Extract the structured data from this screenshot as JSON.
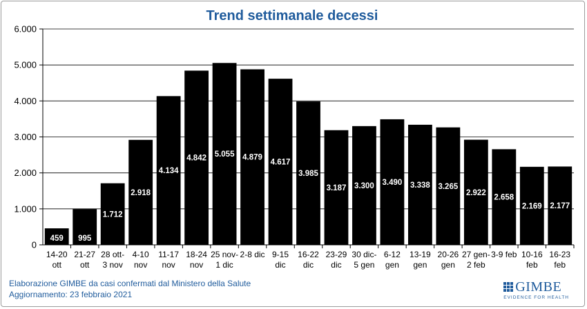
{
  "chart_data": {
    "type": "bar",
    "title": "Trend settimanale decessi",
    "xlabel": "",
    "ylabel": "",
    "ylim": [
      0,
      6000
    ],
    "yticks": [
      "0",
      "1.000",
      "2.000",
      "3.000",
      "4.000",
      "5.000",
      "6.000"
    ],
    "grid": true,
    "categories": [
      [
        "14-20",
        "ott"
      ],
      [
        "21-27",
        "ott"
      ],
      [
        "28 ott-",
        "3 nov"
      ],
      [
        "4-10",
        "nov"
      ],
      [
        "11-17",
        "nov"
      ],
      [
        "18-24",
        "nov"
      ],
      [
        "25 nov-",
        "1 dic"
      ],
      [
        "2-8 dic",
        ""
      ],
      [
        "9-15",
        "dic"
      ],
      [
        "16-22",
        "dic"
      ],
      [
        "23-29",
        "dic"
      ],
      [
        "30 dic-",
        "5 gen"
      ],
      [
        "6-12",
        "gen"
      ],
      [
        "13-19",
        "gen"
      ],
      [
        "20-26",
        "gen"
      ],
      [
        "27 gen-",
        "2 feb"
      ],
      [
        "3-9 feb",
        ""
      ],
      [
        "10-16",
        "feb"
      ],
      [
        "16-23",
        "feb"
      ]
    ],
    "values": [
      459,
      995,
      1712,
      2918,
      4134,
      4842,
      5055,
      4879,
      4617,
      3985,
      3187,
      3300,
      3490,
      3338,
      3265,
      2922,
      2658,
      2169,
      2177
    ],
    "labels": [
      "459",
      "995",
      "1.712",
      "2.918",
      "4.134",
      "4.842",
      "5.055",
      "4.879",
      "4.617",
      "3.985",
      "3.187",
      "3.300",
      "3.490",
      "3.338",
      "3.265",
      "2.922",
      "2.658",
      "2.169",
      "2.177"
    ],
    "bar_color": "#000000",
    "label_color": "#ffffff",
    "title_color": "#1f5b9c"
  },
  "footer": {
    "line1": "Elaborazione GIMBE da casi confermati dal Ministero della Salute",
    "line2": "Aggiornamento: 23 febbraio 2021"
  },
  "logo": {
    "name": "GIMBE",
    "tagline": "EVIDENCE FOR HEALTH"
  }
}
